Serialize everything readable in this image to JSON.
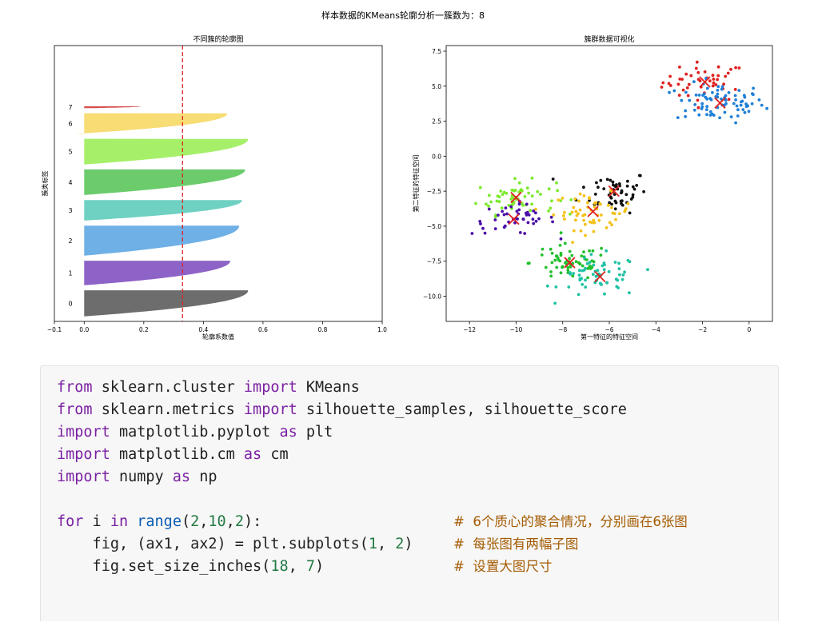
{
  "figure_title": "样本数据的KMeans轮廓分析一簇数为：8",
  "colors": {
    "page_background": "#ffffff",
    "code_background": "#f7f7f7",
    "keyword": "#7a1fa2",
    "builtin": "#0b5db5",
    "number": "#227a44",
    "comment": "#a35a00",
    "threshold_line": "#e02020",
    "centroid_marker": "#e02020"
  },
  "chart_data": [
    {
      "type": "area",
      "title": "不同簇的轮廓图",
      "xlabel": "轮廓系数值",
      "ylabel": "簇类标签",
      "xlim": [
        -0.1,
        1.0
      ],
      "xticks": [
        -0.1,
        0.0,
        0.2,
        0.4,
        0.6,
        0.8,
        1.0
      ],
      "xtick_labels": [
        "−0.1",
        "0.0",
        "0.2",
        "0.4",
        "0.6",
        "0.8",
        "1.0"
      ],
      "ylim": [
        0,
        550
      ],
      "reference_line": {
        "x": 0.33,
        "style": "dashed",
        "color": "#e02020"
      },
      "clusters": [
        {
          "label": "0",
          "color": "#6d6d6d",
          "y_lower": 10,
          "y_upper": 62,
          "max": 0.55,
          "min": 0.0
        },
        {
          "label": "1",
          "color": "#8e63c7",
          "y_lower": 72,
          "y_upper": 121,
          "max": 0.49,
          "min": 0.0
        },
        {
          "label": "2",
          "color": "#6fb0e6",
          "y_lower": 131,
          "y_upper": 191,
          "max": 0.52,
          "min": 0.0
        },
        {
          "label": "3",
          "color": "#6fd1c2",
          "y_lower": 201,
          "y_upper": 242,
          "max": 0.53,
          "min": 0.0
        },
        {
          "label": "4",
          "color": "#6ccc6c",
          "y_lower": 252,
          "y_upper": 303,
          "max": 0.54,
          "min": 0.0
        },
        {
          "label": "5",
          "color": "#a6f069",
          "y_lower": 313,
          "y_upper": 364,
          "max": 0.55,
          "min": 0.0
        },
        {
          "label": "6",
          "color": "#f8dc74",
          "y_lower": 374,
          "y_upper": 415,
          "max": 0.48,
          "min": -0.03
        },
        {
          "label": "7",
          "color": "#d65050",
          "y_lower": 425,
          "y_upper": 429,
          "max": 0.19,
          "min": 0.0
        }
      ]
    },
    {
      "type": "scatter",
      "title": "簇群数据可视化",
      "xlabel": "第一特征的特征空间",
      "ylabel": "第二特征的特征空间",
      "xlim": [
        -13,
        1.0
      ],
      "ylim": [
        -11.8,
        7.9
      ],
      "xticks": [
        -12,
        -10,
        -8,
        -6,
        -4,
        -2,
        0
      ],
      "xtick_labels": [
        "−12",
        "−10",
        "−8",
        "−6",
        "−4",
        "−2",
        "0"
      ],
      "yticks": [
        7.5,
        5.0,
        2.5,
        0.0,
        -2.5,
        -5.0,
        -7.5,
        -10.0
      ],
      "ytick_labels": [
        "7.5",
        "5.0",
        "2.5",
        "0.0",
        "−2.5",
        "−5.0",
        "−7.5",
        "−10.0"
      ],
      "clusters": [
        {
          "color": "#e02020",
          "center": [
            -1.9,
            5.3
          ],
          "spread": [
            0.9,
            0.7
          ],
          "n": 45
        },
        {
          "color": "#1f7fd6",
          "center": [
            -1.25,
            3.8
          ],
          "spread": [
            0.95,
            0.7
          ],
          "n": 80
        },
        {
          "color": "#111111",
          "center": [
            -5.8,
            -2.5
          ],
          "spread": [
            0.75,
            0.75
          ],
          "n": 55
        },
        {
          "color": "#7cea2c",
          "center": [
            -10.0,
            -2.95
          ],
          "spread": [
            0.85,
            0.6
          ],
          "n": 60
        },
        {
          "color": "#f4c21a",
          "center": [
            -6.7,
            -3.95
          ],
          "spread": [
            0.85,
            0.65
          ],
          "n": 60
        },
        {
          "color": "#4b0ea8",
          "center": [
            -10.1,
            -4.5
          ],
          "spread": [
            0.9,
            0.55
          ],
          "n": 45
        },
        {
          "color": "#22c02e",
          "center": [
            -7.7,
            -7.6
          ],
          "spread": [
            0.85,
            0.65
          ],
          "n": 60
        },
        {
          "color": "#1fc2a4",
          "center": [
            -6.4,
            -8.6
          ],
          "spread": [
            0.85,
            0.75
          ],
          "n": 60
        }
      ],
      "centroids": [
        [
          -1.9,
          5.3
        ],
        [
          -1.25,
          3.8
        ],
        [
          -5.8,
          -2.5
        ],
        [
          -10.0,
          -2.95
        ],
        [
          -6.7,
          -3.95
        ],
        [
          -10.1,
          -4.5
        ],
        [
          -7.7,
          -7.6
        ],
        [
          -6.4,
          -8.6
        ]
      ]
    }
  ],
  "code": {
    "lines": [
      {
        "tokens": [
          {
            "t": "from",
            "c": "kw"
          },
          {
            "t": " sklearn.cluster ",
            "c": "plain"
          },
          {
            "t": "import",
            "c": "kw"
          },
          {
            "t": " KMeans",
            "c": "plain"
          }
        ]
      },
      {
        "tokens": [
          {
            "t": "from",
            "c": "kw"
          },
          {
            "t": " sklearn.metrics ",
            "c": "plain"
          },
          {
            "t": "import",
            "c": "kw"
          },
          {
            "t": " silhouette_samples, silhouette_score",
            "c": "plain"
          }
        ]
      },
      {
        "tokens": [
          {
            "t": "import",
            "c": "kw"
          },
          {
            "t": " matplotlib.pyplot ",
            "c": "plain"
          },
          {
            "t": "as",
            "c": "kw"
          },
          {
            "t": " plt",
            "c": "plain"
          }
        ]
      },
      {
        "tokens": [
          {
            "t": "import",
            "c": "kw"
          },
          {
            "t": " matplotlib.cm ",
            "c": "plain"
          },
          {
            "t": "as",
            "c": "kw"
          },
          {
            "t": " cm",
            "c": "plain"
          }
        ]
      },
      {
        "tokens": [
          {
            "t": "import",
            "c": "kw"
          },
          {
            "t": " numpy ",
            "c": "plain"
          },
          {
            "t": "as",
            "c": "kw"
          },
          {
            "t": " np",
            "c": "plain"
          }
        ]
      },
      {
        "tokens": []
      },
      {
        "tokens": [
          {
            "t": "for",
            "c": "kw"
          },
          {
            "t": " i ",
            "c": "plain"
          },
          {
            "t": "in",
            "c": "kw"
          },
          {
            "t": " ",
            "c": "plain"
          },
          {
            "t": "range",
            "c": "fn"
          },
          {
            "t": "(",
            "c": "plain"
          },
          {
            "t": "2",
            "c": "num"
          },
          {
            "t": ",",
            "c": "plain"
          },
          {
            "t": "10",
            "c": "num"
          },
          {
            "t": ",",
            "c": "plain"
          },
          {
            "t": "2",
            "c": "num"
          },
          {
            "t": "):",
            "c": "plain"
          }
        ],
        "comment": "#  6个质心的聚合情况，分别画在6张图"
      },
      {
        "tokens": [
          {
            "t": "    fig, (ax1, ax2) = plt.subplots(",
            "c": "plain"
          },
          {
            "t": "1",
            "c": "num"
          },
          {
            "t": ", ",
            "c": "plain"
          },
          {
            "t": "2",
            "c": "num"
          },
          {
            "t": ")",
            "c": "plain"
          }
        ],
        "comment": "#  每张图有两幅子图"
      },
      {
        "tokens": [
          {
            "t": "    fig.set_size_inches(",
            "c": "plain"
          },
          {
            "t": "18",
            "c": "num"
          },
          {
            "t": ", ",
            "c": "plain"
          },
          {
            "t": "7",
            "c": "num"
          },
          {
            "t": ")",
            "c": "plain"
          }
        ],
        "comment": "#  设置大图尺寸"
      }
    ]
  }
}
